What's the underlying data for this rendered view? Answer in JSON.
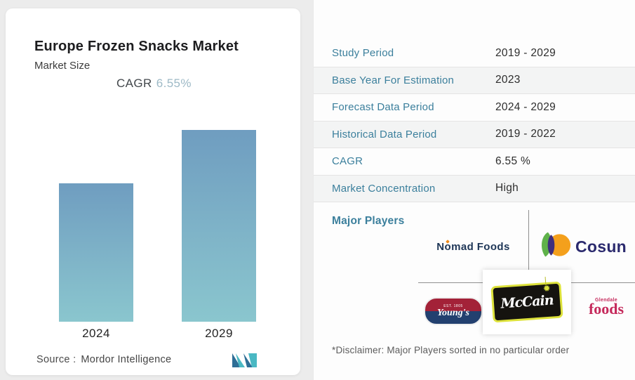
{
  "left_panel": {
    "title": "Europe Frozen Snacks Market",
    "subtitle": "Market Size",
    "cagr_label": "CAGR",
    "cagr_value": "6.55%",
    "source_label": "Source :",
    "source_value": "Mordor Intelligence"
  },
  "chart_data": {
    "type": "bar",
    "title": "Europe Frozen Snacks Market - Market Size",
    "categories": [
      "2024",
      "2029"
    ],
    "values_labeled_on_chart": false,
    "relative_values": [
      0.72,
      1.0
    ],
    "growth_note": "CAGR 6.55%",
    "bar_gradient_top": "#6f9dc0",
    "bar_gradient_bottom": "#8ac6ce",
    "xlabel": "",
    "ylabel": "",
    "grid": false,
    "legend": false
  },
  "info_table": {
    "rows": [
      {
        "label": "Study Period",
        "value": "2019 - 2029"
      },
      {
        "label": "Base Year For Estimation",
        "value": "2023"
      },
      {
        "label": "Forecast Data Period",
        "value": "2024 - 2029"
      },
      {
        "label": "Historical Data Period",
        "value": "2019 - 2022"
      },
      {
        "label": "CAGR",
        "value": "6.55 %"
      },
      {
        "label": "Market Concentration",
        "value": "High"
      }
    ]
  },
  "major_players": {
    "heading": "Major Players",
    "nomad": "Nomad Foods",
    "cosun": "Cosun",
    "youngs_est": "EST. 1805",
    "youngs": "Young's",
    "mccain": "McCain",
    "glendale_top": "Glendale",
    "glendale": "foods",
    "disclaimer": "*Disclaimer: Major Players sorted in no particular order"
  },
  "colors": {
    "table_label_teal": "#3b7f9c",
    "cagr_value_text": "#9db9c6",
    "bar_top_blue": "#6f9dc0",
    "bar_bottom_teal": "#8ac6ce",
    "nomad_navy": "#1d3556",
    "cosun_navy": "#2b2a6e",
    "cosun_orange": "#f4a01c",
    "cosun_green": "#5fb24a",
    "cosun_purple": "#3f2f7d",
    "youngs_red": "#a32238",
    "youngs_navy": "#23406f",
    "mccain_yellow_border": "#dde23b",
    "glendale_pink": "#c5295b",
    "mi_logo_navy": "#2e6e96",
    "mi_logo_teal": "#4ab8c3"
  }
}
